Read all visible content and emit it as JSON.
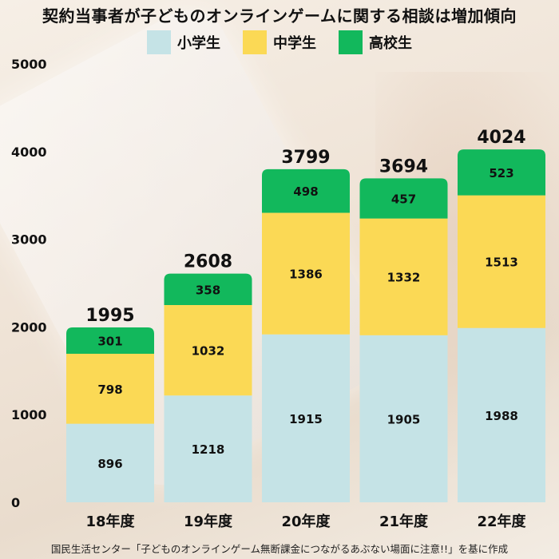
{
  "chart_data": {
    "type": "bar",
    "stacked": true,
    "title": "契約当事者が子どものオンラインゲームに関する相談は増加傾向",
    "categories": [
      "18年度",
      "19年度",
      "20年度",
      "21年度",
      "22年度"
    ],
    "series": [
      {
        "name": "小学生",
        "color": "#c5e3e6",
        "values": [
          896,
          1218,
          1915,
          1905,
          1988
        ]
      },
      {
        "name": "中学生",
        "color": "#fbd955",
        "values": [
          798,
          1032,
          1386,
          1332,
          1513
        ]
      },
      {
        "name": "高校生",
        "color": "#12b85c",
        "values": [
          301,
          358,
          498,
          457,
          523
        ]
      }
    ],
    "totals": [
      1995,
      2608,
      3799,
      3694,
      4024
    ],
    "ylim": [
      0,
      5000
    ],
    "yticks": [
      0,
      1000,
      2000,
      3000,
      4000,
      5000
    ],
    "grid": false,
    "legend_position": "top-center"
  },
  "source": "国民生活センター「子どものオンラインゲーム無断課金につながるあぶない場面に注意!!」を基に作成"
}
